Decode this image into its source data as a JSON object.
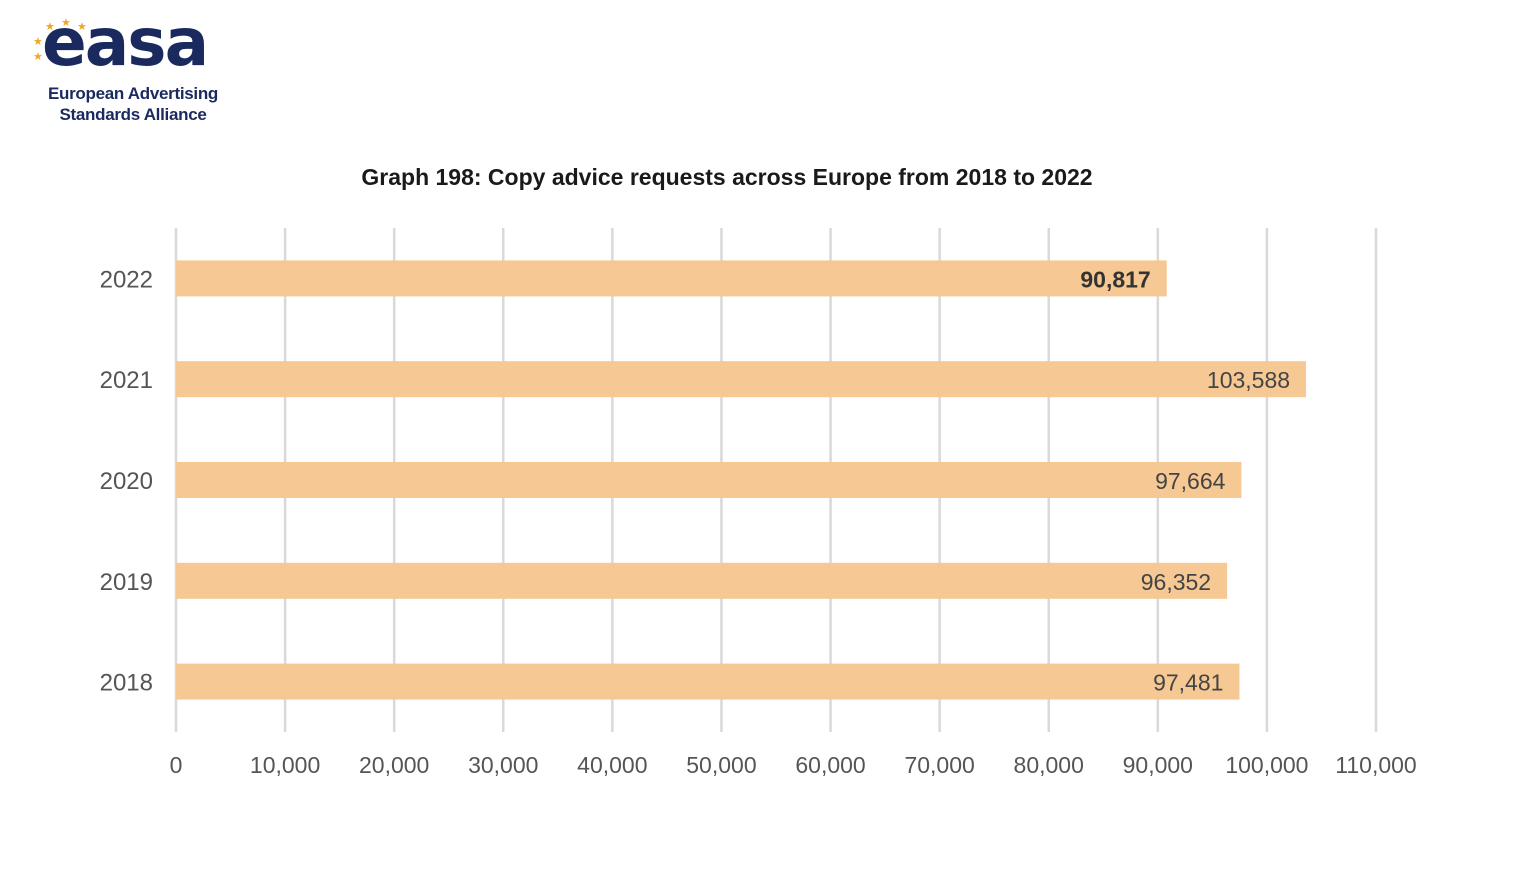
{
  "logo": {
    "wordmark": "easa",
    "line1": "European Advertising",
    "line2": "Standards Alliance",
    "brand_color": "#1b2a5e",
    "star_color": "#f2a623"
  },
  "chart_data": {
    "type": "bar",
    "orientation": "horizontal",
    "title": "Graph 198: Copy advice requests across Europe from 2018 to 2022",
    "categories": [
      "2022",
      "2021",
      "2020",
      "2019",
      "2018"
    ],
    "values": [
      90817,
      103588,
      97664,
      96352,
      97481
    ],
    "data_labels": [
      "90,817",
      "103,588",
      "97,664",
      "96,352",
      "97,481"
    ],
    "highlighted_category": "2022",
    "xlim": [
      0,
      110000
    ],
    "xticks": [
      0,
      10000,
      20000,
      30000,
      40000,
      50000,
      60000,
      70000,
      80000,
      90000,
      100000,
      110000
    ],
    "xtick_labels": [
      "0",
      "10,000",
      "20,000",
      "30,000",
      "40,000",
      "50,000",
      "60,000",
      "70,000",
      "80,000",
      "90,000",
      "100,000",
      "110,000"
    ],
    "xlabel": "",
    "ylabel": "",
    "grid": "vertical",
    "legend": "none",
    "bar_color": "#f6c893",
    "grid_color": "#d9d9d9"
  }
}
